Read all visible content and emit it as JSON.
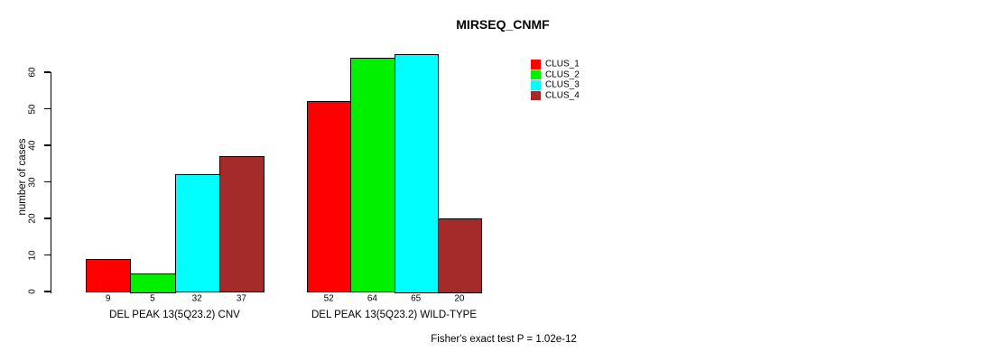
{
  "chart_data": {
    "type": "bar",
    "title": "MIRSEQ_CNMF",
    "ylabel": "number of cases",
    "xlabel": "",
    "ylim": [
      0,
      65
    ],
    "yticks": [
      0,
      10,
      20,
      30,
      40,
      50,
      60
    ],
    "grid": false,
    "legend_position": "right-top",
    "categories": [
      "DEL PEAK 13(5Q23.2) CNV",
      "DEL PEAK 13(5Q23.2) WILD-TYPE"
    ],
    "series": [
      {
        "name": "CLUS_1",
        "color": "#ff0000",
        "values": [
          9,
          52
        ]
      },
      {
        "name": "CLUS_2",
        "color": "#00f000",
        "values": [
          5,
          64
        ]
      },
      {
        "name": "CLUS_3",
        "color": "#00ffff",
        "values": [
          32,
          65
        ]
      },
      {
        "name": "CLUS_4",
        "color": "#a52a2a",
        "values": [
          37,
          20
        ]
      }
    ],
    "groups": [
      {
        "label": "DEL PEAK 13(5Q23.2) CNV",
        "values": [
          9,
          5,
          32,
          37
        ]
      },
      {
        "label": "DEL PEAK 13(5Q23.2) WILD-TYPE",
        "values": [
          52,
          64,
          65,
          20
        ]
      }
    ],
    "bar_value_labels_shown": true,
    "annotation": "Fisher's exact test P = 1.02e-12"
  },
  "legend": {
    "items": [
      {
        "label": "CLUS_1",
        "color": "#ff0000"
      },
      {
        "label": "CLUS_2",
        "color": "#00f000"
      },
      {
        "label": "CLUS_3",
        "color": "#00ffff"
      },
      {
        "label": "CLUS_4",
        "color": "#a52a2a"
      }
    ]
  }
}
